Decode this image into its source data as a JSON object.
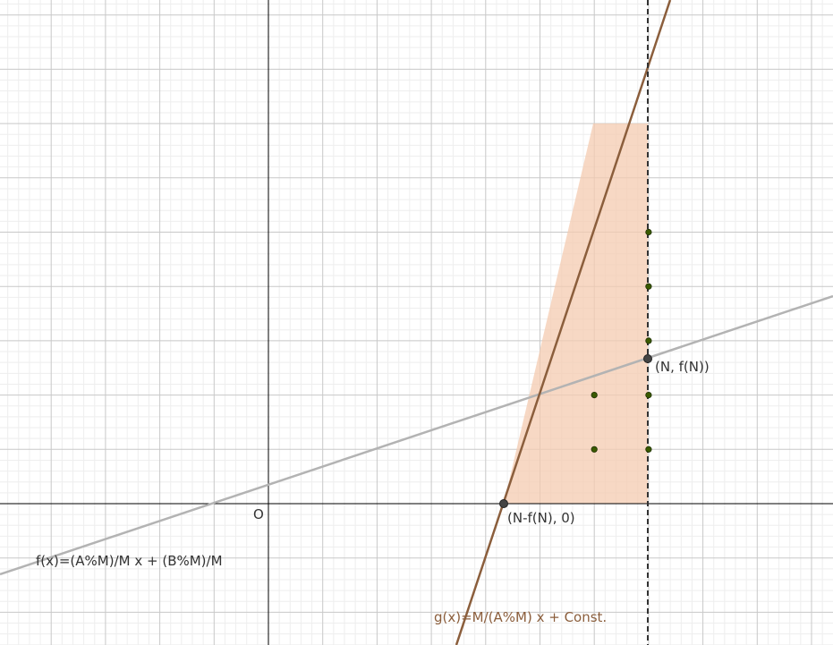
{
  "diagram": {
    "origin_label": "O",
    "f_label": "f(x)=(A%M)/M x + (B%M)/M",
    "g_label": "g(x)=M/(A%M) x + Const.",
    "point_top_label": "(N, f(N))",
    "point_bottom_label": "(N-f(N), 0)",
    "lattice_points": [
      {
        "x": 6,
        "y": 1
      },
      {
        "x": 6,
        "y": 2
      },
      {
        "x": 7,
        "y": 1
      },
      {
        "x": 7,
        "y": 2
      },
      {
        "x": 7,
        "y": 3
      },
      {
        "x": 7,
        "y": 4
      },
      {
        "x": 7,
        "y": 5
      }
    ],
    "colors": {
      "grid_minor": "#eeeeee",
      "grid_major": "#c8c8c8",
      "axis": "#000000",
      "f_line": "#b3b3b3",
      "g_line": "#8b5e3c",
      "region_fill": "#f4cbb0",
      "lattice_point": "#3a5a00",
      "key_point": "#444444",
      "g_label_color": "#8b5e3c",
      "text": "#333333"
    }
  }
}
